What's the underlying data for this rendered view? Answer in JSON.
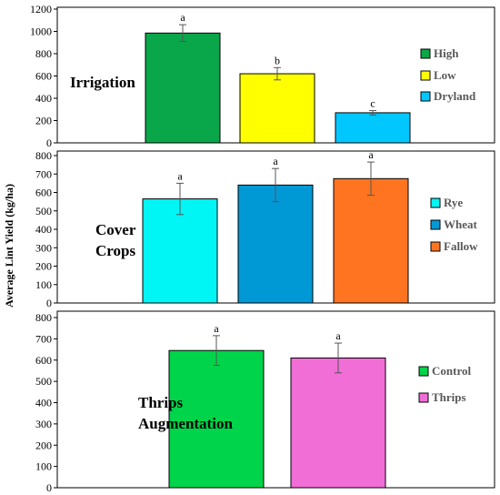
{
  "chart_data": [
    {
      "type": "bar",
      "panel_label": [
        "Irrigation"
      ],
      "categories": [
        "High",
        "Low",
        "Dryland"
      ],
      "values": [
        985,
        620,
        270
      ],
      "errors": [
        75,
        55,
        20
      ],
      "significance": [
        "a",
        "b",
        "c"
      ],
      "colors": [
        "#0aa64a",
        "#ffff00",
        "#00c8ff"
      ],
      "ylim": [
        0,
        1200
      ],
      "yticks": [
        0,
        200,
        400,
        600,
        800,
        1000,
        1200
      ],
      "legend_position": "right"
    },
    {
      "type": "bar",
      "panel_label": [
        "Cover",
        "Crops"
      ],
      "categories": [
        "Rye",
        "Wheat",
        "Fallow"
      ],
      "values": [
        565,
        640,
        675
      ],
      "errors": [
        85,
        90,
        90
      ],
      "significance": [
        "a",
        "a",
        "a"
      ],
      "colors": [
        "#00f5f5",
        "#0099d6",
        "#ff7420"
      ],
      "ylim": [
        0,
        800
      ],
      "yticks": [
        0,
        100,
        200,
        300,
        400,
        500,
        600,
        700,
        800
      ],
      "legend_position": "right"
    },
    {
      "type": "bar",
      "panel_label": [
        "Thrips",
        "Augmentation"
      ],
      "categories": [
        "Control",
        "Thrips"
      ],
      "values": [
        645,
        610
      ],
      "errors": [
        70,
        70
      ],
      "significance": [
        "a",
        "a"
      ],
      "colors": [
        "#00d44a",
        "#f06ed6"
      ],
      "ylim": [
        0,
        800
      ],
      "yticks": [
        0,
        100,
        200,
        300,
        400,
        500,
        600,
        700,
        800
      ],
      "legend_position": "right"
    }
  ],
  "ylabel": "Average Lint Yield (kg/ha)"
}
